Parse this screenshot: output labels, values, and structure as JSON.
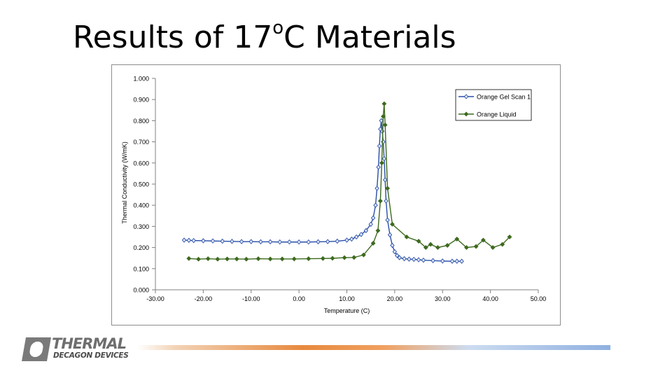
{
  "slide": {
    "title_pre": "Results of 17",
    "title_sup": "o",
    "title_post": "C Materials"
  },
  "logo": {
    "name": "THERMAL",
    "sub": "DECAGON DEVICES"
  },
  "chart_data": {
    "type": "scatter",
    "xlabel": "Temperature (C)",
    "ylabel": "Thermal Conductivity (W/mK)",
    "xlim": [
      -30,
      50
    ],
    "ylim": [
      0,
      1
    ],
    "x_ticks": [
      "-30.00",
      "-20.00",
      "-10.00",
      "0.00",
      "10.00",
      "20.00",
      "30.00",
      "40.00",
      "50.00"
    ],
    "y_ticks": [
      "0.000",
      "0.100",
      "0.200",
      "0.300",
      "0.400",
      "0.500",
      "0.600",
      "0.700",
      "0.800",
      "0.900",
      "1.000"
    ],
    "grid": false,
    "legend_position": "top-right",
    "series": [
      {
        "name": "Orange Gel Scan 1",
        "color": "#2a4fa8",
        "marker": "diamond",
        "points": [
          [
            -24.0,
            0.235
          ],
          [
            -23.0,
            0.234
          ],
          [
            -22.0,
            0.233
          ],
          [
            -20.0,
            0.232
          ],
          [
            -18.0,
            0.231
          ],
          [
            -16.0,
            0.23
          ],
          [
            -14.0,
            0.229
          ],
          [
            -12.0,
            0.228
          ],
          [
            -10.0,
            0.228
          ],
          [
            -8.0,
            0.227
          ],
          [
            -6.0,
            0.227
          ],
          [
            -4.0,
            0.226
          ],
          [
            -2.0,
            0.226
          ],
          [
            0.0,
            0.226
          ],
          [
            2.0,
            0.226
          ],
          [
            4.0,
            0.227
          ],
          [
            6.0,
            0.228
          ],
          [
            8.0,
            0.23
          ],
          [
            10.0,
            0.235
          ],
          [
            11.0,
            0.24
          ],
          [
            12.0,
            0.25
          ],
          [
            13.0,
            0.262
          ],
          [
            14.0,
            0.28
          ],
          [
            15.0,
            0.31
          ],
          [
            15.5,
            0.34
          ],
          [
            16.0,
            0.4
          ],
          [
            16.3,
            0.48
          ],
          [
            16.6,
            0.58
          ],
          [
            16.8,
            0.68
          ],
          [
            17.0,
            0.76
          ],
          [
            17.2,
            0.8
          ],
          [
            17.4,
            0.75
          ],
          [
            17.6,
            0.7
          ],
          [
            17.8,
            0.62
          ],
          [
            18.0,
            0.52
          ],
          [
            18.2,
            0.42
          ],
          [
            18.5,
            0.33
          ],
          [
            19.0,
            0.26
          ],
          [
            19.5,
            0.21
          ],
          [
            20.0,
            0.18
          ],
          [
            20.5,
            0.162
          ],
          [
            21.0,
            0.152
          ],
          [
            22.0,
            0.147
          ],
          [
            23.0,
            0.145
          ],
          [
            24.0,
            0.144
          ],
          [
            25.0,
            0.142
          ],
          [
            26.0,
            0.14
          ],
          [
            28.0,
            0.138
          ],
          [
            30.0,
            0.136
          ],
          [
            32.0,
            0.135
          ],
          [
            33.0,
            0.135
          ],
          [
            34.0,
            0.135
          ]
        ]
      },
      {
        "name": "Orange Liquid",
        "color": "#3d6a1f",
        "marker": "diamond",
        "points": [
          [
            -23.0,
            0.148
          ],
          [
            -21.0,
            0.145
          ],
          [
            -19.0,
            0.147
          ],
          [
            -17.0,
            0.145
          ],
          [
            -15.0,
            0.146
          ],
          [
            -13.0,
            0.146
          ],
          [
            -11.0,
            0.145
          ],
          [
            -8.5,
            0.147
          ],
          [
            -6.0,
            0.146
          ],
          [
            -3.5,
            0.146
          ],
          [
            -1.0,
            0.146
          ],
          [
            2.0,
            0.147
          ],
          [
            5.0,
            0.148
          ],
          [
            7.0,
            0.149
          ],
          [
            9.5,
            0.152
          ],
          [
            11.5,
            0.153
          ],
          [
            13.5,
            0.165
          ],
          [
            15.5,
            0.22
          ],
          [
            16.5,
            0.28
          ],
          [
            17.0,
            0.42
          ],
          [
            17.3,
            0.6
          ],
          [
            17.6,
            0.82
          ],
          [
            17.8,
            0.88
          ],
          [
            18.0,
            0.78
          ],
          [
            18.5,
            0.48
          ],
          [
            19.5,
            0.31
          ],
          [
            22.5,
            0.25
          ],
          [
            25.0,
            0.23
          ],
          [
            26.5,
            0.2
          ],
          [
            27.5,
            0.215
          ],
          [
            29.0,
            0.2
          ],
          [
            31.0,
            0.21
          ],
          [
            33.0,
            0.24
          ],
          [
            35.0,
            0.2
          ],
          [
            37.0,
            0.205
          ],
          [
            38.5,
            0.235
          ],
          [
            40.5,
            0.2
          ],
          [
            42.5,
            0.215
          ],
          [
            44.0,
            0.25
          ]
        ]
      }
    ]
  }
}
